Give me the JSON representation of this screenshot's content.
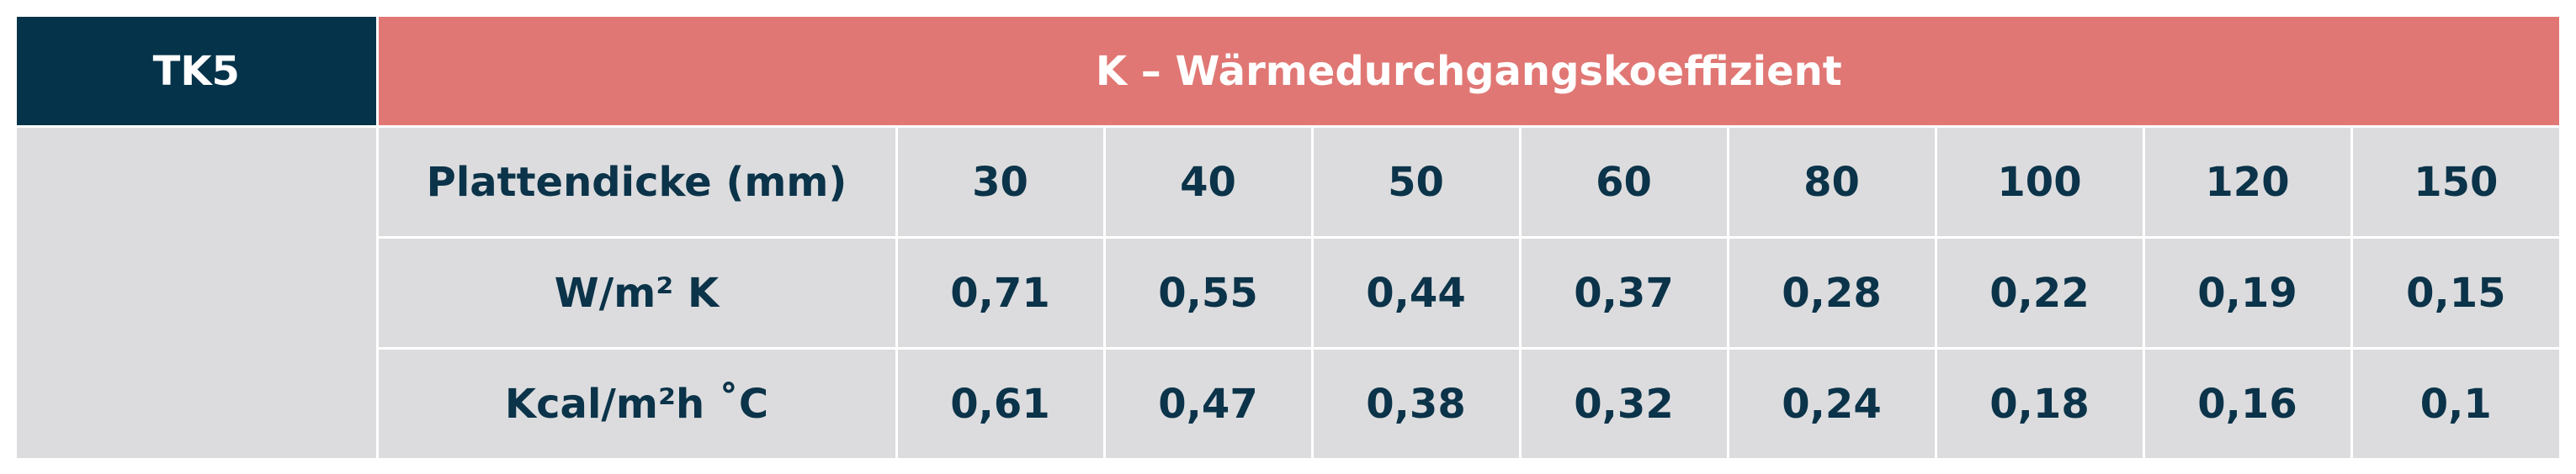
{
  "header": {
    "left": "TK5",
    "title": "K – Wärmedurchgangskoeffizient"
  },
  "table": {
    "rows": [
      {
        "label": "Plattendicke (mm)",
        "values": [
          30,
          40,
          50,
          60,
          80,
          100,
          120,
          150
        ]
      },
      {
        "label": "W/m² K",
        "values": [
          "0,71",
          "0,55",
          "0,44",
          "0,37",
          "0,28",
          "0,22",
          "0,19",
          "0,15"
        ]
      },
      {
        "label": "Kcal/m²h ˚C",
        "values": [
          "0,61",
          "0,47",
          "0,38",
          "0,32",
          "0,24",
          "0,18",
          "0,16",
          "0,1"
        ]
      }
    ]
  }
}
